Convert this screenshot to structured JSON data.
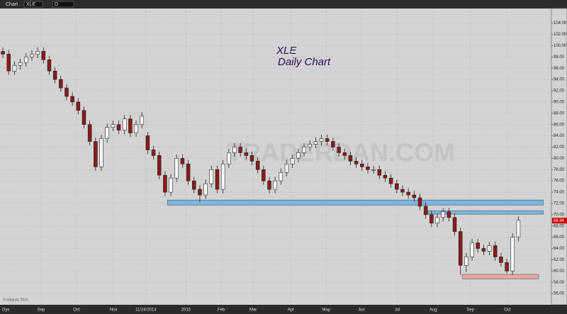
{
  "toolbar": {
    "title": "Chart",
    "symbol": "XLE",
    "interval": "D"
  },
  "chart_data": {
    "type": "candlestick",
    "title": "XLE",
    "subtitle": "Daily Chart",
    "watermark": "TRADERDAN.COM",
    "x_axis_label": "Dys",
    "footer": "© eSignal, 2015",
    "open": [
      99,
      98.5,
      95.5,
      96.5,
      97,
      98,
      98.5,
      99,
      97.5,
      95.5,
      94,
      92.5,
      91,
      90,
      88.5,
      86,
      83,
      78.5,
      83.5,
      85.5,
      86,
      85,
      87,
      84.5,
      86,
      84,
      81.5,
      80.5,
      77,
      74,
      76.5,
      80,
      79,
      76,
      74.5,
      73.5,
      75.5,
      78,
      74.5,
      79,
      81,
      82,
      81,
      80.5,
      79.5,
      78,
      76,
      74.5,
      76,
      77.5,
      79,
      80,
      81,
      82,
      82.5,
      83,
      83.5,
      83,
      82,
      81,
      80.5,
      79.5,
      79,
      78.5,
      78,
      78,
      77,
      76.5,
      75.5,
      74.5,
      74,
      73.5,
      73,
      71.5,
      70,
      68.5,
      69.5,
      70.5,
      69.5,
      67,
      61,
      62.5,
      65,
      64,
      63.5,
      64.5,
      62.5,
      61.5,
      60,
      66
    ],
    "high": [
      99.7,
      99.2,
      97.2,
      97.7,
      98.7,
      99.2,
      99.7,
      99.7,
      98.2,
      96.2,
      94.7,
      93.2,
      91.7,
      90.7,
      89.2,
      86.7,
      83.7,
      84.2,
      86.2,
      86.7,
      86.7,
      87.7,
      87.7,
      86.7,
      88.2,
      84.7,
      82.2,
      81.2,
      77.7,
      77.2,
      80.7,
      80.7,
      79.7,
      76.7,
      75.2,
      76.2,
      78.7,
      78.7,
      79.7,
      81.7,
      82.7,
      82.7,
      81.7,
      81.2,
      80.2,
      78.7,
      76.7,
      76.7,
      78.2,
      79.7,
      80.7,
      81.7,
      82.7,
      83.2,
      83.7,
      84.2,
      84.2,
      83.7,
      82.7,
      81.7,
      81.2,
      80.2,
      79.7,
      79.2,
      78.7,
      78.7,
      77.7,
      77.2,
      76.2,
      75.2,
      74.7,
      74.2,
      73.7,
      72.2,
      70.7,
      70.2,
      71.2,
      71.2,
      70.2,
      67.7,
      63.2,
      65.7,
      65.7,
      64.7,
      65.2,
      65.2,
      63.2,
      62.2,
      66.7,
      69.7
    ],
    "low": [
      97.8,
      94.8,
      94.8,
      95.8,
      96.3,
      97.3,
      97.8,
      96.8,
      94.8,
      93.3,
      91.8,
      90.3,
      89.3,
      87.8,
      85.3,
      82.3,
      77.8,
      77.8,
      82.8,
      84.8,
      84.3,
      84.3,
      83.8,
      83.8,
      85.3,
      80.8,
      79.8,
      76.3,
      73.3,
      73.3,
      75.8,
      78.3,
      75.3,
      73.8,
      72.2,
      72.8,
      74.8,
      73.8,
      73.8,
      78.3,
      80.3,
      80.3,
      79.8,
      78.8,
      77.3,
      75.3,
      73.8,
      73.8,
      75.3,
      76.8,
      78.3,
      79.3,
      80.3,
      81.3,
      81.8,
      82.3,
      82.3,
      81.3,
      80.3,
      79.8,
      78.8,
      78.3,
      77.8,
      77.3,
      77.3,
      76.3,
      75.8,
      74.8,
      73.8,
      73.3,
      72.8,
      72.3,
      70.8,
      69.3,
      67.8,
      67.8,
      68.8,
      68.8,
      66.3,
      59.3,
      59.8,
      61.8,
      63.3,
      62.8,
      62.8,
      61.8,
      60.8,
      59.6,
      59.3,
      65.3
    ],
    "close": [
      98.5,
      95.5,
      96.5,
      97,
      98,
      98.5,
      99,
      97.5,
      95.5,
      94,
      92.5,
      91,
      90,
      88.5,
      86,
      83,
      78.5,
      83.5,
      85.5,
      86,
      85,
      87,
      84.5,
      86,
      87.5,
      81.5,
      80.5,
      77,
      74,
      76.5,
      80,
      79,
      76,
      74.5,
      73.5,
      75.5,
      78,
      74.5,
      79,
      81,
      82,
      81,
      80.5,
      79.5,
      78,
      76,
      74.5,
      76,
      77.5,
      79,
      80,
      81,
      82,
      82.5,
      83,
      83.5,
      83,
      82,
      81,
      80.5,
      79.5,
      79,
      78.5,
      78,
      78,
      77,
      76.5,
      75.5,
      74.5,
      74,
      73.5,
      73,
      71.5,
      70,
      68.5,
      69.5,
      70.5,
      69.5,
      67,
      61,
      62.5,
      65,
      64,
      63.5,
      64.5,
      62.5,
      61.5,
      60,
      66,
      69
    ],
    "up_color": "#ffffff",
    "down_color": "#8b1a1a",
    "xlim": [
      -0.5,
      94.7
    ],
    "xticks": [
      {
        "value": 6.6,
        "label": "Sep"
      },
      {
        "value": 12.7,
        "label": "Oct"
      },
      {
        "value": 19.1,
        "label": "Nov"
      },
      {
        "value": 24.7,
        "label": "11/24/2014"
      },
      {
        "value": 31.6,
        "label": "2015"
      },
      {
        "value": 37.7,
        "label": "Feb"
      },
      {
        "value": 43.2,
        "label": "Mar"
      },
      {
        "value": 49.7,
        "label": "Apr"
      },
      {
        "value": 55.8,
        "label": "May"
      },
      {
        "value": 61.9,
        "label": "Jun"
      },
      {
        "value": 68.1,
        "label": "Jul"
      },
      {
        "value": 74.3,
        "label": "Aug"
      },
      {
        "value": 80.7,
        "label": "Sep"
      },
      {
        "value": 87.1,
        "label": "Oct"
      }
    ],
    "ylim": [
      54,
      106.6
    ],
    "yticks": [
      {
        "value": 56,
        "label": "56.00"
      },
      {
        "value": 58,
        "label": "58.00"
      },
      {
        "value": 60,
        "label": "60.00"
      },
      {
        "value": 62,
        "label": "62.00"
      },
      {
        "value": 64,
        "label": "64.00"
      },
      {
        "value": 66,
        "label": "66.00"
      },
      {
        "value": 68,
        "label": "68.00"
      },
      {
        "value": 70,
        "label": "70.00"
      },
      {
        "value": 72,
        "label": "72.00"
      },
      {
        "value": 74,
        "label": "74.00"
      },
      {
        "value": 76,
        "label": "76.00"
      },
      {
        "value": 78,
        "label": "78.00"
      },
      {
        "value": 80,
        "label": "80.00"
      },
      {
        "value": 82,
        "label": "82.00"
      },
      {
        "value": 84,
        "label": "84.00"
      },
      {
        "value": 86,
        "label": "86.00"
      },
      {
        "value": 88,
        "label": "88.00"
      },
      {
        "value": 90,
        "label": "90.00"
      },
      {
        "value": 92,
        "label": "92.00"
      },
      {
        "value": 94,
        "label": "94.00"
      },
      {
        "value": 96,
        "label": "96.00"
      },
      {
        "value": 98,
        "label": "98.00"
      },
      {
        "value": 100,
        "label": "100.00"
      },
      {
        "value": 102,
        "label": "102.00"
      },
      {
        "value": 104,
        "label": "104.00"
      }
    ],
    "grid": true,
    "last_price": 68.94,
    "last_price_color": "#cc0000",
    "zones": [
      {
        "from": 71.7,
        "to": 72.6,
        "x_start": 28.4,
        "x_end": 93.3,
        "color": "#6ab0e8"
      },
      {
        "from": 70.1,
        "to": 70.7,
        "x_start": 73.4,
        "x_end": 93.3,
        "color": "#6ab0e8"
      },
      {
        "from": 58.6,
        "to": 59.4,
        "x_start": 79.3,
        "x_end": 92.5,
        "color": "#e8a0a0"
      }
    ]
  }
}
